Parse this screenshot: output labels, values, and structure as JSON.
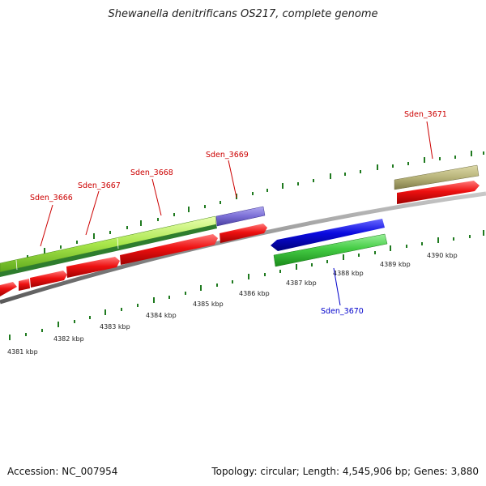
{
  "title": "Shewanella denitrificans OS217, complete genome",
  "footer": {
    "accession": "Accession: NC_007954",
    "summary": "Topology: circular; Length: 4,545,906 bp; Genes: 3,880"
  },
  "colors": {
    "backbone": "#8c8c8c",
    "tick": "#1f7a1f",
    "cds_forward": "#ee1111",
    "cds_other": "#0a0adf",
    "rna_purple": "#7b6fd6",
    "tan": "#b8b47a",
    "green_bright": "#44cc44",
    "lime": "#a8e64a",
    "label_red": "#cc0000",
    "label_blue": "#0000cc"
  },
  "kbp_labels": [
    "4381 kbp",
    "4382 kbp",
    "4383 kbp",
    "4384 kbp",
    "4385 kbp",
    "4386 kbp",
    "4387 kbp",
    "4388 kbp",
    "4389 kbp",
    "4390 kbp"
  ],
  "gene_labels": [
    {
      "id": "Sden_3666",
      "color": "red"
    },
    {
      "id": "Sden_3667",
      "color": "red"
    },
    {
      "id": "Sden_3668",
      "color": "red"
    },
    {
      "id": "Sden_3669",
      "color": "red"
    },
    {
      "id": "Sden_3670",
      "color": "blue"
    },
    {
      "id": "Sden_3671",
      "color": "red"
    }
  ]
}
